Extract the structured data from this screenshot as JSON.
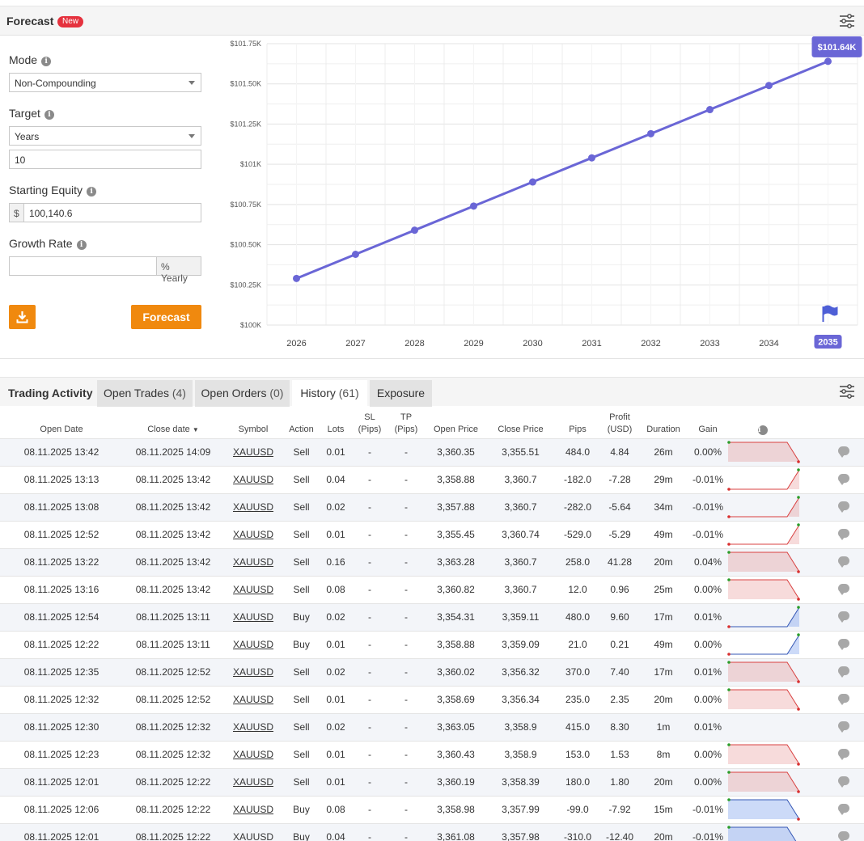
{
  "forecast": {
    "title": "Forecast",
    "badge": "New",
    "settings_icon": "sliders-icon",
    "mode": {
      "label": "Mode",
      "value": "Non-Compounding"
    },
    "target": {
      "label": "Target",
      "unit_value": "Years",
      "value": "10"
    },
    "starting_equity": {
      "label": "Starting Equity",
      "currency": "$",
      "value": "100,140.6"
    },
    "growth_rate": {
      "label": "Growth Rate",
      "value": "",
      "suffix": "% Yearly"
    },
    "download_icon": "download-icon",
    "forecast_button": "Forecast",
    "colors": {
      "accent": "#f0890e",
      "line": "#6a66d6",
      "badge": "#e5323e"
    }
  },
  "chart_data": {
    "type": "line",
    "categories": [
      "2026",
      "2027",
      "2028",
      "2029",
      "2030",
      "2031",
      "2032",
      "2033",
      "2034",
      "2035"
    ],
    "series": [
      {
        "values": [
          100.29,
          100.44,
          100.59,
          100.74,
          100.89,
          101.04,
          101.19,
          101.34,
          101.49,
          101.64
        ]
      }
    ],
    "y_ticks": [
      "$100K",
      "$100.25K",
      "$100.50K",
      "$100.75K",
      "$101K",
      "$101.25K",
      "$101.50K",
      "$101.75K"
    ],
    "ylim": [
      100,
      101.75
    ],
    "end_label": "$101.64K",
    "highlight_category": "2035",
    "marker_icon": "flag-icon",
    "grid": true
  },
  "activity": {
    "title": "Trading Activity",
    "tabs": [
      {
        "label": "Open Trades",
        "count": "(4)"
      },
      {
        "label": "Open Orders",
        "count": "(0)"
      },
      {
        "label": "History",
        "count": "(61)"
      },
      {
        "label": "Exposure",
        "count": ""
      }
    ],
    "columns": {
      "open_date": "Open Date",
      "close_date": "Close date",
      "symbol": "Symbol",
      "action": "Action",
      "lots": "Lots",
      "sl": "SL",
      "sl_unit": "(Pips)",
      "tp": "TP",
      "tp_unit": "(Pips)",
      "open_price": "Open Price",
      "close_price": "Close Price",
      "pips": "Pips",
      "profit": "Profit",
      "profit_unit": "(USD)",
      "duration": "Duration",
      "gain": "Gain"
    },
    "rows": [
      {
        "open": "08.11.2025 13:42",
        "close": "08.11.2025 14:09",
        "symbol": "XAUUSD",
        "action": "Sell",
        "lots": "0.01",
        "sl": "-",
        "tp": "-",
        "open_price": "3,360.35",
        "close_price": "3,355.51",
        "pips": "484.0",
        "profit": "4.84",
        "duration": "26m",
        "gain": "0.00%",
        "sign": "pos",
        "spark": "sell-drop"
      },
      {
        "open": "08.11.2025 13:13",
        "close": "08.11.2025 13:42",
        "symbol": "XAUUSD",
        "action": "Sell",
        "lots": "0.04",
        "sl": "-",
        "tp": "-",
        "open_price": "3,358.88",
        "close_price": "3,360.7",
        "pips": "-182.0",
        "profit": "-7.28",
        "duration": "29m",
        "gain": "-0.01%",
        "sign": "neg",
        "spark": "sell-rise"
      },
      {
        "open": "08.11.2025 13:08",
        "close": "08.11.2025 13:42",
        "symbol": "XAUUSD",
        "action": "Sell",
        "lots": "0.02",
        "sl": "-",
        "tp": "-",
        "open_price": "3,357.88",
        "close_price": "3,360.7",
        "pips": "-282.0",
        "profit": "-5.64",
        "duration": "34m",
        "gain": "-0.01%",
        "sign": "neg",
        "spark": "sell-rise"
      },
      {
        "open": "08.11.2025 12:52",
        "close": "08.11.2025 13:42",
        "symbol": "XAUUSD",
        "action": "Sell",
        "lots": "0.01",
        "sl": "-",
        "tp": "-",
        "open_price": "3,355.45",
        "close_price": "3,360.74",
        "pips": "-529.0",
        "profit": "-5.29",
        "duration": "49m",
        "gain": "-0.01%",
        "sign": "neg",
        "spark": "sell-rise"
      },
      {
        "open": "08.11.2025 13:22",
        "close": "08.11.2025 13:42",
        "symbol": "XAUUSD",
        "action": "Sell",
        "lots": "0.16",
        "sl": "-",
        "tp": "-",
        "open_price": "3,363.28",
        "close_price": "3,360.7",
        "pips": "258.0",
        "profit": "41.28",
        "duration": "20m",
        "gain": "0.04%",
        "sign": "pos",
        "spark": "sell-drop"
      },
      {
        "open": "08.11.2025 13:16",
        "close": "08.11.2025 13:42",
        "symbol": "XAUUSD",
        "action": "Sell",
        "lots": "0.08",
        "sl": "-",
        "tp": "-",
        "open_price": "3,360.82",
        "close_price": "3,360.7",
        "pips": "12.0",
        "profit": "0.96",
        "duration": "25m",
        "gain": "0.00%",
        "sign": "pos",
        "spark": "sell-drop"
      },
      {
        "open": "08.11.2025 12:54",
        "close": "08.11.2025 13:11",
        "symbol": "XAUUSD",
        "action": "Buy",
        "lots": "0.02",
        "sl": "-",
        "tp": "-",
        "open_price": "3,354.31",
        "close_price": "3,359.11",
        "pips": "480.0",
        "profit": "9.60",
        "duration": "17m",
        "gain": "0.01%",
        "sign": "pos",
        "spark": "buy-rise"
      },
      {
        "open": "08.11.2025 12:22",
        "close": "08.11.2025 13:11",
        "symbol": "XAUUSD",
        "action": "Buy",
        "lots": "0.01",
        "sl": "-",
        "tp": "-",
        "open_price": "3,358.88",
        "close_price": "3,359.09",
        "pips": "21.0",
        "profit": "0.21",
        "duration": "49m",
        "gain": "0.00%",
        "sign": "pos",
        "spark": "buy-rise"
      },
      {
        "open": "08.11.2025 12:35",
        "close": "08.11.2025 12:52",
        "symbol": "XAUUSD",
        "action": "Sell",
        "lots": "0.02",
        "sl": "-",
        "tp": "-",
        "open_price": "3,360.02",
        "close_price": "3,356.32",
        "pips": "370.0",
        "profit": "7.40",
        "duration": "17m",
        "gain": "0.01%",
        "sign": "pos",
        "spark": "sell-drop"
      },
      {
        "open": "08.11.2025 12:32",
        "close": "08.11.2025 12:52",
        "symbol": "XAUUSD",
        "action": "Sell",
        "lots": "0.01",
        "sl": "-",
        "tp": "-",
        "open_price": "3,358.69",
        "close_price": "3,356.34",
        "pips": "235.0",
        "profit": "2.35",
        "duration": "20m",
        "gain": "0.00%",
        "sign": "pos",
        "spark": "sell-drop"
      },
      {
        "open": "08.11.2025 12:30",
        "close": "08.11.2025 12:32",
        "symbol": "XAUUSD",
        "action": "Sell",
        "lots": "0.02",
        "sl": "-",
        "tp": "-",
        "open_price": "3,363.05",
        "close_price": "3,358.9",
        "pips": "415.0",
        "profit": "8.30",
        "duration": "1m",
        "gain": "0.01%",
        "sign": "pos",
        "spark": "none"
      },
      {
        "open": "08.11.2025 12:23",
        "close": "08.11.2025 12:32",
        "symbol": "XAUUSD",
        "action": "Sell",
        "lots": "0.01",
        "sl": "-",
        "tp": "-",
        "open_price": "3,360.43",
        "close_price": "3,358.9",
        "pips": "153.0",
        "profit": "1.53",
        "duration": "8m",
        "gain": "0.00%",
        "sign": "pos",
        "spark": "sell-drop"
      },
      {
        "open": "08.11.2025 12:01",
        "close": "08.11.2025 12:22",
        "symbol": "XAUUSD",
        "action": "Sell",
        "lots": "0.01",
        "sl": "-",
        "tp": "-",
        "open_price": "3,360.19",
        "close_price": "3,358.39",
        "pips": "180.0",
        "profit": "1.80",
        "duration": "20m",
        "gain": "0.00%",
        "sign": "pos",
        "spark": "sell-drop"
      },
      {
        "open": "08.11.2025 12:06",
        "close": "08.11.2025 12:22",
        "symbol": "XAUUSD",
        "action": "Buy",
        "lots": "0.08",
        "sl": "-",
        "tp": "-",
        "open_price": "3,358.98",
        "close_price": "3,357.99",
        "pips": "-99.0",
        "profit": "-7.92",
        "duration": "15m",
        "gain": "-0.01%",
        "sign": "neg",
        "spark": "buy-drop"
      },
      {
        "open": "08.11.2025 12:01",
        "close": "08.11.2025 12:22",
        "symbol": "XAUUSD",
        "action": "Buy",
        "lots": "0.04",
        "sl": "-",
        "tp": "-",
        "open_price": "3,361.08",
        "close_price": "3,357.98",
        "pips": "-310.0",
        "profit": "-12.40",
        "duration": "20m",
        "gain": "-0.01%",
        "sign": "neg",
        "spark": "buy-drop"
      }
    ],
    "comment_icon": "comment-icon",
    "info_icon": "info-icon"
  }
}
